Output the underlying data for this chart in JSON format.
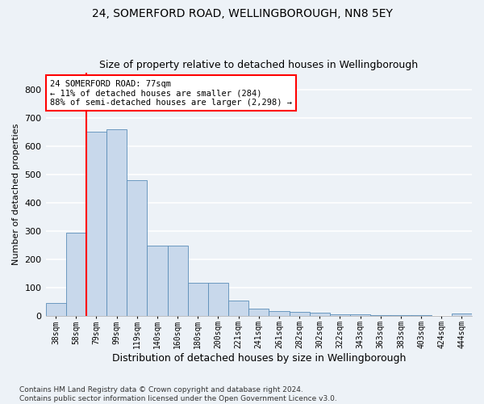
{
  "title1": "24, SOMERFORD ROAD, WELLINGBOROUGH, NN8 5EY",
  "title2": "Size of property relative to detached houses in Wellingborough",
  "xlabel": "Distribution of detached houses by size in Wellingborough",
  "ylabel": "Number of detached properties",
  "footnote": "Contains HM Land Registry data © Crown copyright and database right 2024.\nContains public sector information licensed under the Open Government Licence v3.0.",
  "bin_labels": [
    "38sqm",
    "58sqm",
    "79sqm",
    "99sqm",
    "119sqm",
    "140sqm",
    "160sqm",
    "180sqm",
    "200sqm",
    "221sqm",
    "241sqm",
    "261sqm",
    "282sqm",
    "302sqm",
    "322sqm",
    "343sqm",
    "363sqm",
    "383sqm",
    "403sqm",
    "424sqm",
    "444sqm"
  ],
  "bar_heights": [
    46,
    293,
    650,
    660,
    480,
    248,
    248,
    115,
    115,
    52,
    25,
    16,
    14,
    10,
    6,
    5,
    3,
    2,
    1,
    0,
    8
  ],
  "bar_color": "#c8d8eb",
  "bar_edge_color": "#5b8db8",
  "annotation_text": "24 SOMERFORD ROAD: 77sqm\n← 11% of detached houses are smaller (284)\n88% of semi-detached houses are larger (2,298) →",
  "annotation_box_color": "white",
  "annotation_box_edge": "red",
  "vline_color": "red",
  "vline_pos": 1.5,
  "ylim": [
    0,
    860
  ],
  "yticks": [
    0,
    100,
    200,
    300,
    400,
    500,
    600,
    700,
    800
  ],
  "background_color": "#edf2f7",
  "grid_color": "white",
  "title1_fontsize": 10,
  "title2_fontsize": 9,
  "xlabel_fontsize": 9,
  "ylabel_fontsize": 8,
  "annotation_fontsize": 7.5,
  "tick_fontsize": 7,
  "ytick_fontsize": 8,
  "footnote_fontsize": 6.5
}
